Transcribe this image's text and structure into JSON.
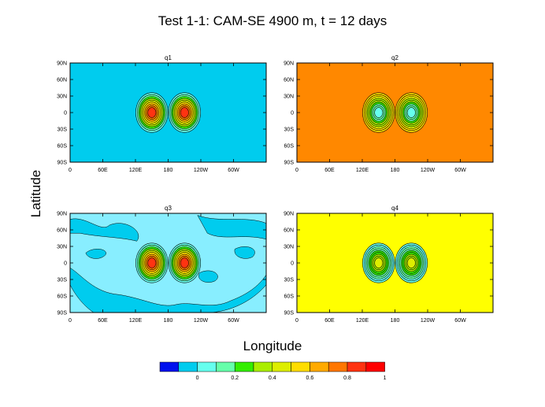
{
  "figure": {
    "title": "Test 1-1: CAM-SE 4900 m, t = 12 days",
    "xlabel": "Longitude",
    "ylabel": "Latitude"
  },
  "colorbar": {
    "colors": [
      "#0011ee",
      "#00ccee",
      "#66ffee",
      "#66ffaa",
      "#33ee00",
      "#aaee00",
      "#ddee00",
      "#ffdd00",
      "#ffaa00",
      "#ff7700",
      "#ff3311",
      "#ff0000"
    ],
    "tick_labels": [
      "0",
      "0.2",
      "0.4",
      "0.6",
      "0.8",
      "1"
    ]
  },
  "chart_data": [
    {
      "type": "heatmap",
      "title": "q1",
      "xlim": [
        0,
        360
      ],
      "ylim": [
        -90,
        90
      ],
      "x_ticks": [
        "0",
        "60E",
        "120E",
        "180",
        "120W",
        "60W"
      ],
      "y_ticks": [
        "90N",
        "60N",
        "30N",
        "0",
        "30S",
        "60S",
        "90S"
      ],
      "background_color": "#00ccee",
      "features": [
        {
          "lon": 150,
          "lat": 0,
          "peak_value": 0.95
        },
        {
          "lon": 210,
          "lat": 0,
          "peak_value": 0.95
        }
      ]
    },
    {
      "type": "heatmap",
      "title": "q2",
      "xlim": [
        0,
        360
      ],
      "ylim": [
        -90,
        90
      ],
      "x_ticks": [
        "0",
        "60E",
        "120E",
        "180",
        "120W",
        "60W"
      ],
      "y_ticks": [
        "90N",
        "60N",
        "30N",
        "0",
        "30S",
        "60S",
        "90S"
      ],
      "background_color": "#ff8800",
      "features": [
        {
          "lon": 150,
          "lat": 0,
          "peak_value": 0.15
        },
        {
          "lon": 210,
          "lat": 0,
          "peak_value": 0.15
        }
      ]
    },
    {
      "type": "heatmap",
      "title": "q3",
      "xlim": [
        0,
        360
      ],
      "ylim": [
        -90,
        90
      ],
      "x_ticks": [
        "0",
        "60E",
        "120E",
        "180",
        "120W",
        "60W"
      ],
      "y_ticks": [
        "90N",
        "60N",
        "30N",
        "0",
        "30S",
        "60S",
        "90S"
      ],
      "background_color": "#88eeff",
      "features": [
        {
          "lon": 150,
          "lat": 0,
          "peak_value": 0.95
        },
        {
          "lon": 210,
          "lat": 0,
          "peak_value": 0.95
        }
      ]
    },
    {
      "type": "heatmap",
      "title": "q4",
      "xlim": [
        0,
        360
      ],
      "ylim": [
        -90,
        90
      ],
      "x_ticks": [
        "0",
        "60E",
        "120E",
        "180",
        "120W",
        "60W"
      ],
      "y_ticks": [
        "90N",
        "60N",
        "30N",
        "0",
        "30S",
        "60S",
        "90S"
      ],
      "background_color": "#ffff00",
      "features": [
        {
          "lon": 150,
          "lat": 0,
          "peak_value": 0.55
        },
        {
          "lon": 210,
          "lat": 0,
          "peak_value": 0.55
        }
      ]
    }
  ]
}
